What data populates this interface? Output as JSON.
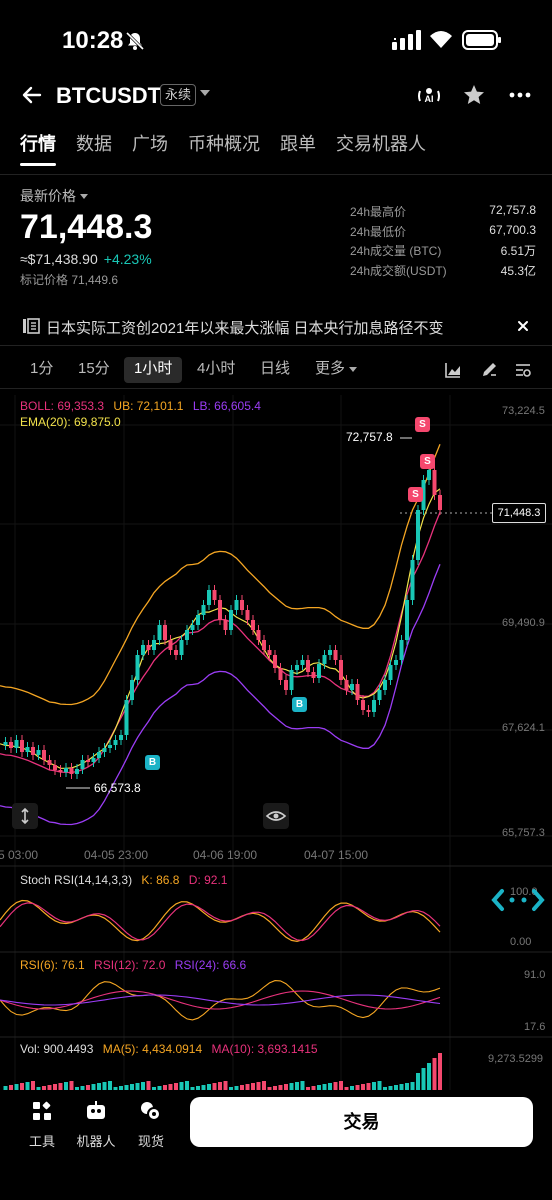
{
  "status_bar": {
    "time": "10:28"
  },
  "header": {
    "symbol": "BTCUSDT",
    "contract_type": "永续"
  },
  "tabs": [
    {
      "label": "行情",
      "active": true
    },
    {
      "label": "数据"
    },
    {
      "label": "广场"
    },
    {
      "label": "币种概况"
    },
    {
      "label": "跟单"
    },
    {
      "label": "交易机器人"
    }
  ],
  "price": {
    "label": "最新价格",
    "last": "71,448.3",
    "usd": "≈$71,438.90",
    "change_pct": "+4.23%",
    "mark_price": "标记价格 71,449.6",
    "up_color": "#19c7b6",
    "down_color": "#f5486e"
  },
  "stats": [
    {
      "label": "24h最高价",
      "value": "72,757.8"
    },
    {
      "label": "24h最低价",
      "value": "67,700.3"
    },
    {
      "label": "24h成交量 (BTC)",
      "value": "6.51万"
    },
    {
      "label": "24h成交额(USDT)",
      "value": "45.3亿"
    }
  ],
  "news": {
    "text": "日本实际工资创2021年以来最大涨幅 日本央行加息路径不变"
  },
  "intervals": [
    {
      "label": "1分"
    },
    {
      "label": "15分"
    },
    {
      "label": "1小时",
      "active": true
    },
    {
      "label": "4小时"
    },
    {
      "label": "日线"
    },
    {
      "label": "更多"
    }
  ],
  "chart": {
    "boll_label": "BOLL: 69,353.3",
    "ub_label": "UB: 72,101.1",
    "lb_label": "LB: 66,605.4",
    "ema_label": "EMA(20): 69,875.0",
    "price_axis": [
      "73,224.5",
      "69,490.9",
      "67,624.1",
      "65,757.3"
    ],
    "current_price": "71,448.3",
    "high_marker": "72,757.8",
    "low_marker": "66,573.8",
    "time_axis": [
      "5 03:00",
      "04-05 23:00",
      "04-06 19:00",
      "04-07 15:00"
    ],
    "stoch_label": "Stoch RSI(14,14,3,3)",
    "stoch_k": "K: 86.8",
    "stoch_d": "D: 92.1",
    "stoch_axis": [
      "100.0",
      "0.00"
    ],
    "rsi6": "RSI(6): 76.1",
    "rsi12": "RSI(12): 72.0",
    "rsi24": "RSI(24): 66.6",
    "rsi_axis": [
      "91.0",
      "17.6"
    ],
    "vol_label": "Vol: 900.4493",
    "ma5_label": "MA(5): 4,434.0914",
    "ma10_label": "MA(10): 3,693.1415",
    "vol_axis": "9,273.5299",
    "badge_sell": "S",
    "badge_buy": "B",
    "colors": {
      "boll": "#e8327c",
      "ub": "#f5a623",
      "lb": "#9b3df5",
      "ema": "#f2e24b",
      "up": "#19c7b6",
      "down": "#f5486e"
    }
  },
  "bottom": {
    "tools_label": "工具",
    "bot_label": "机器人",
    "spot_label": "现货",
    "trade_label": "交易"
  }
}
